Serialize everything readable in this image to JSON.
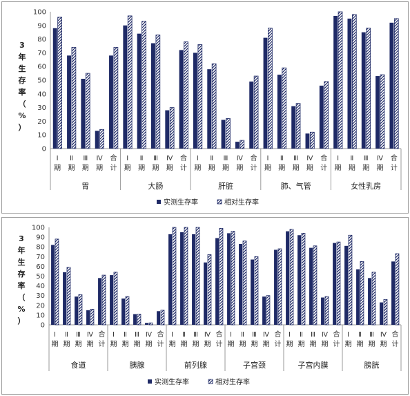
{
  "colors": {
    "measured": "#1f2a66",
    "relative_stripe": "#1f2a66",
    "axis": "#9a9a9a"
  },
  "legend": {
    "measured": "实测生存率",
    "relative": "相对生存率"
  },
  "chart_data": [
    {
      "type": "bar",
      "ylabel": "3年生存率（%）",
      "ylim": [
        0,
        100
      ],
      "yticks": [
        0,
        10,
        20,
        30,
        40,
        50,
        60,
        70,
        80,
        90,
        100
      ],
      "stage_labels": [
        "Ⅰ期",
        "Ⅱ期",
        "Ⅲ期",
        "Ⅳ期",
        "合计"
      ],
      "groups": [
        {
          "name": "胃",
          "measured": [
            88,
            68,
            51,
            13,
            68
          ],
          "relative": [
            96,
            74,
            55,
            14,
            74
          ]
        },
        {
          "name": "大肠",
          "measured": [
            90,
            84,
            77,
            28,
            72
          ],
          "relative": [
            97,
            93,
            83,
            30,
            78
          ]
        },
        {
          "name": "肝脏",
          "measured": [
            70,
            58,
            21,
            5,
            49
          ],
          "relative": [
            76,
            62,
            22,
            6,
            53
          ]
        },
        {
          "name": "肺、气管",
          "measured": [
            81,
            54,
            31,
            11,
            46
          ],
          "relative": [
            88,
            59,
            33,
            12,
            49
          ]
        },
        {
          "name": "女性乳房",
          "measured": [
            97,
            95,
            85,
            53,
            92
          ],
          "relative": [
            100,
            98,
            88,
            54,
            95
          ]
        }
      ],
      "series": [
        {
          "name": "实测生存率"
        },
        {
          "name": "相对生存率"
        }
      ],
      "legend_position": "bottom",
      "grid": false
    },
    {
      "type": "bar",
      "ylabel": "3年生存率（%）",
      "ylim": [
        0,
        100
      ],
      "yticks": [
        0,
        10,
        20,
        30,
        40,
        50,
        60,
        70,
        80,
        90,
        100
      ],
      "stage_labels": [
        "Ⅰ期",
        "Ⅱ期",
        "Ⅲ期",
        "Ⅳ期",
        "合计"
      ],
      "groups": [
        {
          "name": "食道",
          "measured": [
            82,
            54,
            29,
            15,
            48
          ],
          "relative": [
            88,
            59,
            31,
            16,
            51
          ]
        },
        {
          "name": "胰腺",
          "measured": [
            51,
            27,
            11,
            2,
            14
          ],
          "relative": [
            54,
            29,
            11,
            2,
            15
          ]
        },
        {
          "name": "前列腺",
          "measured": [
            93,
            95,
            93,
            64,
            89
          ],
          "relative": [
            100,
            100,
            100,
            72,
            99
          ]
        },
        {
          "name": "子宫颈",
          "measured": [
            94,
            83,
            67,
            29,
            77
          ],
          "relative": [
            96,
            86,
            70,
            30,
            78
          ]
        },
        {
          "name": "子宫内膜",
          "measured": [
            96,
            92,
            79,
            28,
            84
          ],
          "relative": [
            98,
            94,
            81,
            29,
            85
          ]
        },
        {
          "name": "膀胱",
          "measured": [
            81,
            57,
            48,
            23,
            65
          ],
          "relative": [
            92,
            65,
            54,
            26,
            73
          ]
        }
      ],
      "series": [
        {
          "name": "实测生存率"
        },
        {
          "name": "相对生存率"
        }
      ],
      "legend_position": "bottom",
      "grid": false
    }
  ]
}
